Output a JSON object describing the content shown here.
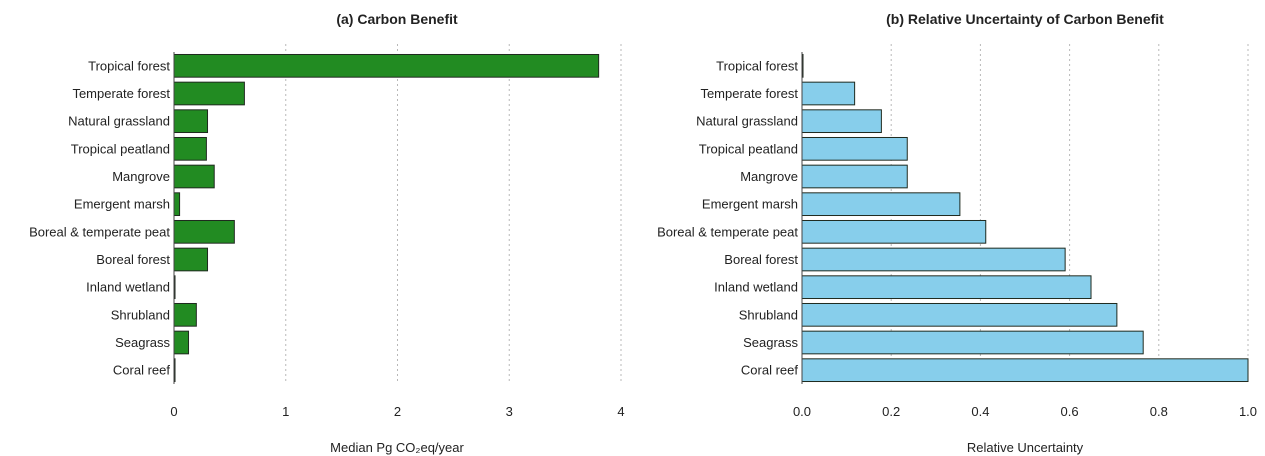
{
  "chart_data": [
    {
      "type": "bar",
      "orientation": "horizontal",
      "title": "(a) Carbon Benefit",
      "xlabel": "Median Pg CO₂eq/year",
      "ylabel": "",
      "categories": [
        "Tropical forest",
        "Temperate forest",
        "Natural grassland",
        "Tropical peatland",
        "Mangrove",
        "Emergent marsh",
        "Boreal & temperate peat",
        "Boreal forest",
        "Inland wetland",
        "Shrubland",
        "Seagrass",
        "Coral reef"
      ],
      "values": [
        3.8,
        0.63,
        0.3,
        0.29,
        0.36,
        0.05,
        0.54,
        0.3,
        0.005,
        0.2,
        0.13,
        0.005
      ],
      "xlim": [
        0,
        4
      ],
      "xticks": [
        "0",
        "1",
        "2",
        "3",
        "4"
      ],
      "xtick_values": [
        0,
        1,
        2,
        3,
        4
      ],
      "grid": "vertical dotted",
      "color": "#228b22"
    },
    {
      "type": "bar",
      "orientation": "horizontal",
      "title": "(b) Relative Uncertainty of Carbon Benefit",
      "xlabel": "Relative Uncertainty",
      "ylabel": "",
      "categories": [
        "Tropical forest",
        "Temperate forest",
        "Natural grassland",
        "Tropical peatland",
        "Mangrove",
        "Emergent marsh",
        "Boreal & temperate peat",
        "Boreal forest",
        "Inland wetland",
        "Shrubland",
        "Seagrass",
        "Coral reef"
      ],
      "values": [
        0.002,
        0.118,
        0.178,
        0.236,
        0.236,
        0.354,
        0.412,
        0.59,
        0.648,
        0.706,
        0.765,
        1.0
      ],
      "xlim": [
        0,
        1
      ],
      "xticks": [
        "0.0",
        "0.2",
        "0.4",
        "0.6",
        "0.8",
        "1.0"
      ],
      "xtick_values": [
        0,
        0.2,
        0.4,
        0.6,
        0.8,
        1.0
      ],
      "grid": "vertical dotted",
      "color": "#87ceeb"
    }
  ]
}
